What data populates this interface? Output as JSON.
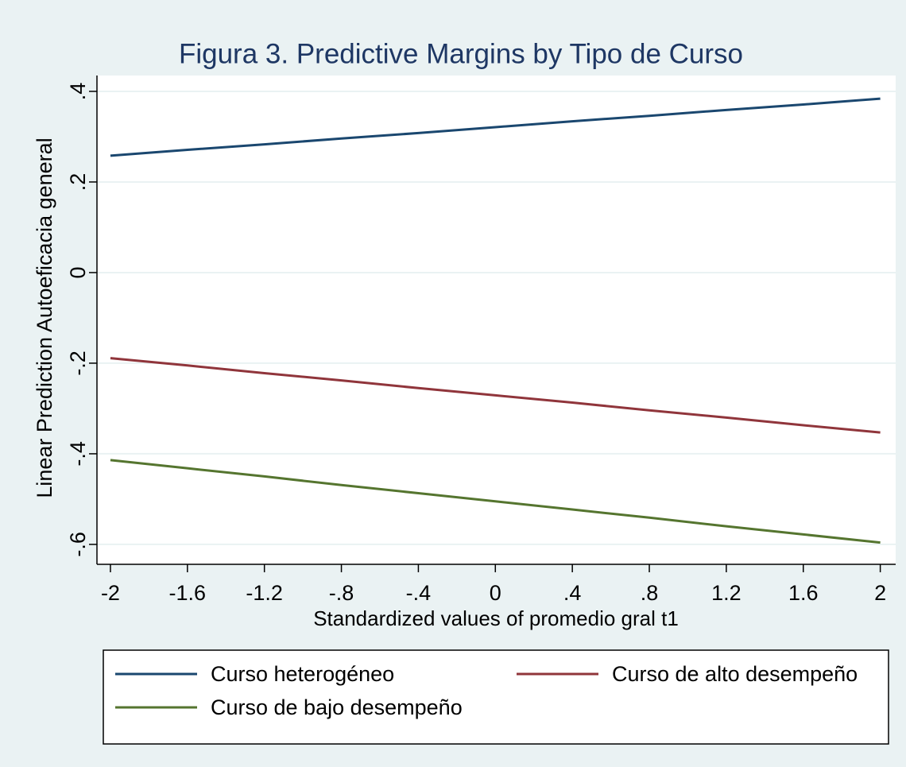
{
  "chart_data": {
    "type": "line",
    "title": "Figura 3. Predictive Margins by Tipo de Curso",
    "x_label": "Standardized values of promedio gral t1",
    "y_label": "Linear Prediction Autoeficacia general",
    "x": [
      -2,
      -1.6,
      -1.2,
      -0.8,
      -0.4,
      0,
      0.4,
      0.8,
      1.2,
      1.6,
      2
    ],
    "series": [
      {
        "name": "Curso heterogéneo",
        "color": "#1a476f",
        "values": [
          0.258,
          0.271,
          0.283,
          0.296,
          0.308,
          0.321,
          0.334,
          0.346,
          0.359,
          0.371,
          0.384
        ]
      },
      {
        "name": "Curso de alto desempeño",
        "color": "#90353b",
        "values": [
          -0.189,
          -0.205,
          -0.222,
          -0.238,
          -0.255,
          -0.271,
          -0.287,
          -0.304,
          -0.32,
          -0.337,
          -0.353
        ]
      },
      {
        "name": "Curso de bajo desempeño",
        "color": "#55752f",
        "values": [
          -0.414,
          -0.432,
          -0.45,
          -0.469,
          -0.487,
          -0.505,
          -0.523,
          -0.541,
          -0.56,
          -0.578,
          -0.596
        ]
      }
    ],
    "xlim": [
      -2.07,
      2.08
    ],
    "ylim": [
      -0.644,
      0.435
    ],
    "xticks": [
      -2,
      -1.6,
      -1.2,
      {
        "value": -0.8,
        "label": "-.8"
      },
      {
        "value": -0.4,
        "label": "-.4"
      },
      0,
      {
        "value": 0.4,
        "label": ".4"
      },
      {
        "value": 0.8,
        "label": ".8"
      },
      1.2,
      1.6,
      2
    ],
    "yticks": [
      {
        "value": -0.6,
        "label": "-.6"
      },
      {
        "value": -0.4,
        "label": "-.4"
      },
      {
        "value": -0.2,
        "label": "-.2"
      },
      0,
      {
        "value": 0.2,
        "label": ".2"
      },
      {
        "value": 0.4,
        "label": ".4"
      }
    ],
    "grid": true,
    "legend": "bottom"
  }
}
